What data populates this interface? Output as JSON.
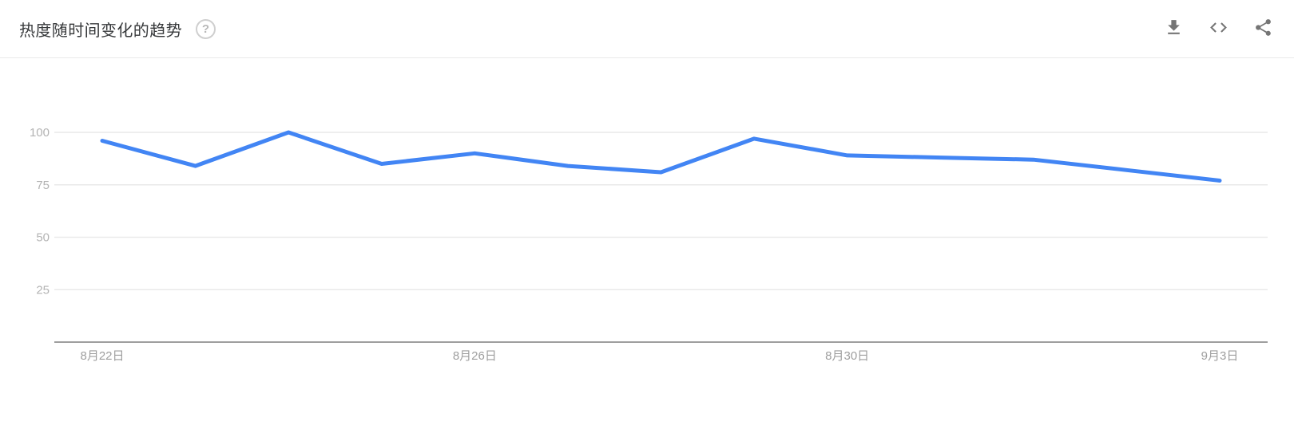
{
  "header": {
    "title": "热度随时间变化的趋势",
    "help_glyph": "?",
    "action_icons": [
      "download-icon",
      "embed-code-icon",
      "share-icon"
    ]
  },
  "colors": {
    "line": "#4285f4",
    "icon_gray": "#757575",
    "grid": "#e9e9e9",
    "axis": "#9e9e9e",
    "y_label": "#b3b3b3",
    "x_label": "#9e9e9e"
  },
  "chart_data": {
    "type": "line",
    "title": "热度随时间变化的趋势",
    "x": [
      "8月22日",
      "8月23日",
      "8月24日",
      "8月25日",
      "8月26日",
      "8月27日",
      "8月28日",
      "8月29日",
      "8月30日",
      "8月31日",
      "9月1日",
      "9月2日",
      "9月3日"
    ],
    "values": [
      96,
      84,
      100,
      85,
      90,
      84,
      81,
      97,
      89,
      88,
      87,
      82,
      77
    ],
    "x_tick_labels": [
      "8月22日",
      "8月26日",
      "8月30日",
      "9月3日"
    ],
    "y_ticks": [
      100,
      75,
      50,
      25
    ],
    "ylim": [
      0,
      100
    ],
    "grid": true,
    "legend": "none"
  }
}
